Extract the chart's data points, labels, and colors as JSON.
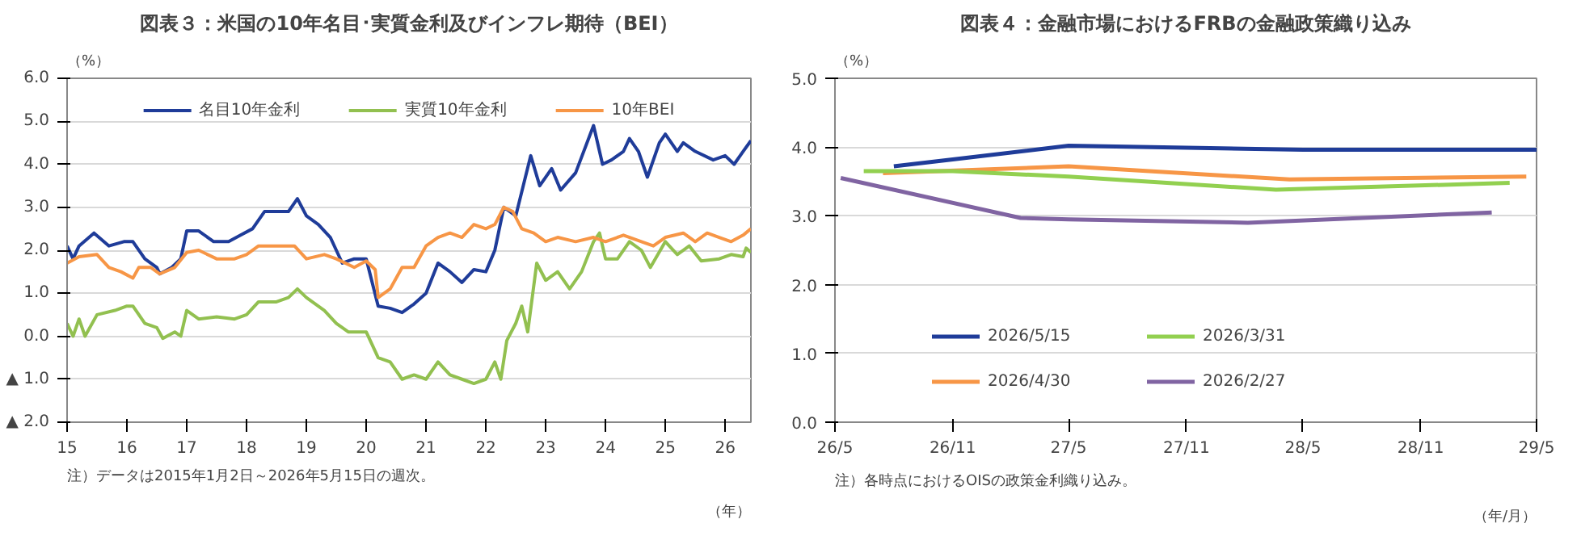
{
  "chart_data": [
    {
      "type": "line",
      "title": "図表３：米国の10年名目･実質金利及びインフレ期待（BEI）",
      "ylabel": "（%）",
      "xlabel": "（年）",
      "legend": "top",
      "grid": "y",
      "xlim": [
        2015,
        2026.43
      ],
      "xticks": [
        {
          "value": 2015,
          "label": "15"
        },
        {
          "value": 2016,
          "label": "16"
        },
        {
          "value": 2017,
          "label": "17"
        },
        {
          "value": 2018,
          "label": "18"
        },
        {
          "value": 2019,
          "label": "19"
        },
        {
          "value": 2020,
          "label": "20"
        },
        {
          "value": 2021,
          "label": "21"
        },
        {
          "value": 2022,
          "label": "22"
        },
        {
          "value": 2023,
          "label": "23"
        },
        {
          "value": 2024,
          "label": "24"
        },
        {
          "value": 2025,
          "label": "25"
        },
        {
          "value": 2026,
          "label": "26"
        }
      ],
      "ylim": [
        -2,
        6
      ],
      "yticks": [
        {
          "value": -2,
          "label": "▲ 2.0"
        },
        {
          "value": -1,
          "label": "▲ 1.0"
        },
        {
          "value": 0,
          "label": "0.0"
        },
        {
          "value": 1,
          "label": "1.0"
        },
        {
          "value": 2,
          "label": "2.0"
        },
        {
          "value": 3,
          "label": "3.0"
        },
        {
          "value": 4,
          "label": "4.0"
        },
        {
          "value": 5,
          "label": "5.0"
        },
        {
          "value": 6,
          "label": "6.0"
        }
      ],
      "annotations": [
        "注）データは2015年1月2日～2026年5月15日の週次。"
      ],
      "series": [
        {
          "name": "名目10年金利",
          "color": "#1f3c99",
          "x": [
            2015.0,
            2015.1,
            2015.2,
            2015.45,
            2015.7,
            2015.95,
            2016.1,
            2016.3,
            2016.5,
            2016.55,
            2016.75,
            2016.9,
            2017.0,
            2017.2,
            2017.45,
            2017.7,
            2017.9,
            2018.1,
            2018.3,
            2018.5,
            2018.7,
            2018.85,
            2019.0,
            2019.2,
            2019.4,
            2019.6,
            2019.8,
            2020.0,
            2020.2,
            2020.4,
            2020.6,
            2020.8,
            2021.0,
            2021.2,
            2021.4,
            2021.6,
            2021.8,
            2022.0,
            2022.15,
            2022.3,
            2022.5,
            2022.75,
            2022.9,
            2023.1,
            2023.25,
            2023.5,
            2023.8,
            2023.95,
            2024.1,
            2024.3,
            2024.4,
            2024.55,
            2024.7,
            2024.9,
            2025.0,
            2025.2,
            2025.3,
            2025.5,
            2025.8,
            2026.0,
            2026.15,
            2026.3,
            2026.43
          ],
          "values": [
            2.1,
            1.8,
            2.1,
            2.4,
            2.1,
            2.2,
            2.2,
            1.8,
            1.6,
            1.45,
            1.6,
            1.8,
            2.45,
            2.45,
            2.2,
            2.2,
            2.35,
            2.5,
            2.9,
            2.9,
            2.9,
            3.2,
            2.8,
            2.6,
            2.3,
            1.7,
            1.8,
            1.8,
            0.7,
            0.65,
            0.55,
            0.75,
            1.0,
            1.7,
            1.5,
            1.25,
            1.55,
            1.5,
            2.0,
            3.0,
            2.8,
            4.2,
            3.5,
            3.9,
            3.4,
            3.8,
            4.9,
            4.0,
            4.1,
            4.3,
            4.6,
            4.3,
            3.7,
            4.5,
            4.7,
            4.3,
            4.5,
            4.3,
            4.1,
            4.2,
            4.0,
            4.3,
            4.55
          ]
        },
        {
          "name": "実質10年金利",
          "color": "#92c050",
          "x": [
            2015.0,
            2015.1,
            2015.2,
            2015.3,
            2015.5,
            2015.8,
            2016.0,
            2016.1,
            2016.3,
            2016.5,
            2016.6,
            2016.8,
            2016.9,
            2017.0,
            2017.2,
            2017.5,
            2017.8,
            2018.0,
            2018.2,
            2018.5,
            2018.7,
            2018.85,
            2019.0,
            2019.3,
            2019.5,
            2019.7,
            2020.0,
            2020.2,
            2020.4,
            2020.6,
            2020.8,
            2021.0,
            2021.2,
            2021.4,
            2021.6,
            2021.8,
            2022.0,
            2022.15,
            2022.25,
            2022.35,
            2022.5,
            2022.6,
            2022.7,
            2022.85,
            2023.0,
            2023.2,
            2023.4,
            2023.6,
            2023.8,
            2023.9,
            2024.0,
            2024.2,
            2024.4,
            2024.6,
            2024.75,
            2025.0,
            2025.2,
            2025.4,
            2025.6,
            2025.9,
            2026.1,
            2026.3,
            2026.35,
            2026.43
          ],
          "values": [
            0.3,
            0.0,
            0.4,
            0.0,
            0.5,
            0.6,
            0.7,
            0.7,
            0.3,
            0.2,
            -0.05,
            0.1,
            0.0,
            0.6,
            0.4,
            0.45,
            0.4,
            0.5,
            0.8,
            0.8,
            0.9,
            1.1,
            0.9,
            0.6,
            0.3,
            0.1,
            0.1,
            -0.5,
            -0.6,
            -1.0,
            -0.9,
            -1.0,
            -0.6,
            -0.9,
            -1.0,
            -1.1,
            -1.0,
            -0.6,
            -1.0,
            -0.1,
            0.3,
            0.7,
            0.1,
            1.7,
            1.3,
            1.5,
            1.1,
            1.5,
            2.2,
            2.4,
            1.8,
            1.8,
            2.2,
            2.0,
            1.6,
            2.2,
            1.9,
            2.1,
            1.75,
            1.8,
            1.9,
            1.85,
            2.05,
            1.95
          ]
        },
        {
          "name": "10年BEI",
          "color": "#f79646",
          "x": [
            2015.0,
            2015.2,
            2015.5,
            2015.7,
            2015.9,
            2016.1,
            2016.2,
            2016.4,
            2016.55,
            2016.8,
            2017.0,
            2017.2,
            2017.5,
            2017.8,
            2018.0,
            2018.2,
            2018.5,
            2018.8,
            2019.0,
            2019.3,
            2019.5,
            2019.8,
            2020.0,
            2020.15,
            2020.2,
            2020.4,
            2020.6,
            2020.8,
            2021.0,
            2021.2,
            2021.4,
            2021.6,
            2021.8,
            2022.0,
            2022.15,
            2022.3,
            2022.45,
            2022.6,
            2022.8,
            2023.0,
            2023.2,
            2023.5,
            2023.8,
            2024.0,
            2024.3,
            2024.6,
            2024.8,
            2025.0,
            2025.3,
            2025.5,
            2025.7,
            2025.9,
            2026.1,
            2026.3,
            2026.43
          ],
          "values": [
            1.7,
            1.85,
            1.9,
            1.6,
            1.5,
            1.35,
            1.6,
            1.6,
            1.45,
            1.6,
            1.95,
            2.0,
            1.8,
            1.8,
            1.9,
            2.1,
            2.1,
            2.1,
            1.8,
            1.9,
            1.8,
            1.6,
            1.75,
            1.55,
            0.9,
            1.1,
            1.6,
            1.6,
            2.1,
            2.3,
            2.4,
            2.3,
            2.6,
            2.5,
            2.6,
            3.0,
            2.9,
            2.5,
            2.4,
            2.2,
            2.3,
            2.2,
            2.3,
            2.2,
            2.35,
            2.2,
            2.1,
            2.3,
            2.4,
            2.2,
            2.4,
            2.3,
            2.2,
            2.35,
            2.5
          ]
        }
      ]
    },
    {
      "type": "line",
      "title": "図表４：金融市場におけるFRBの金融政策織り込み",
      "ylabel": "（%）",
      "xlabel": "（年/月）",
      "legend": "bottom",
      "grid": "y",
      "xlim": [
        "2026-05",
        "2029-05"
      ],
      "xticks": [
        {
          "value": "2026-05",
          "label": "26/5"
        },
        {
          "value": "2026-11",
          "label": "26/11"
        },
        {
          "value": "2027-05",
          "label": "27/5"
        },
        {
          "value": "2027-11",
          "label": "27/11"
        },
        {
          "value": "2028-05",
          "label": "28/5"
        },
        {
          "value": "2028-11",
          "label": "28/11"
        },
        {
          "value": "2029-05",
          "label": "29/5"
        }
      ],
      "ylim": [
        0,
        5
      ],
      "yticks": [
        {
          "value": 0,
          "label": "0.0"
        },
        {
          "value": 1,
          "label": "1.0"
        },
        {
          "value": 2,
          "label": "2.0"
        },
        {
          "value": 3,
          "label": "3.0"
        },
        {
          "value": 4,
          "label": "4.0"
        },
        {
          "value": 5,
          "label": "5.0"
        }
      ],
      "annotations": [
        "注）各時点におけるOISの政策金利織り込み。"
      ],
      "series": [
        {
          "name": "2026/5/15",
          "color": "#1f3c99",
          "x": [
            "2026-08-01",
            "2026-11-01",
            "2027-05-01",
            "2028-05-01",
            "2029-05-01"
          ],
          "values": [
            3.72,
            3.82,
            4.02,
            3.96,
            3.96
          ]
        },
        {
          "name": "2026/4/30",
          "color": "#f79646",
          "x": [
            "2026-07-15",
            "2027-05-01",
            "2028-04-10",
            "2029-04-15"
          ],
          "values": [
            3.62,
            3.72,
            3.53,
            3.57
          ]
        },
        {
          "name": "2026/3/31",
          "color": "#92d050",
          "x": [
            "2026-06-15",
            "2026-11-01",
            "2027-05-01",
            "2028-03-20",
            "2029-03-20"
          ],
          "values": [
            3.65,
            3.65,
            3.57,
            3.38,
            3.48
          ]
        },
        {
          "name": "2026/2/27",
          "color": "#8064a2",
          "x": [
            "2026-05-10",
            "2027-02-15",
            "2027-05-01",
            "2028-02-05",
            "2029-02-20"
          ],
          "values": [
            3.55,
            2.97,
            2.95,
            2.9,
            3.05
          ]
        }
      ]
    }
  ]
}
